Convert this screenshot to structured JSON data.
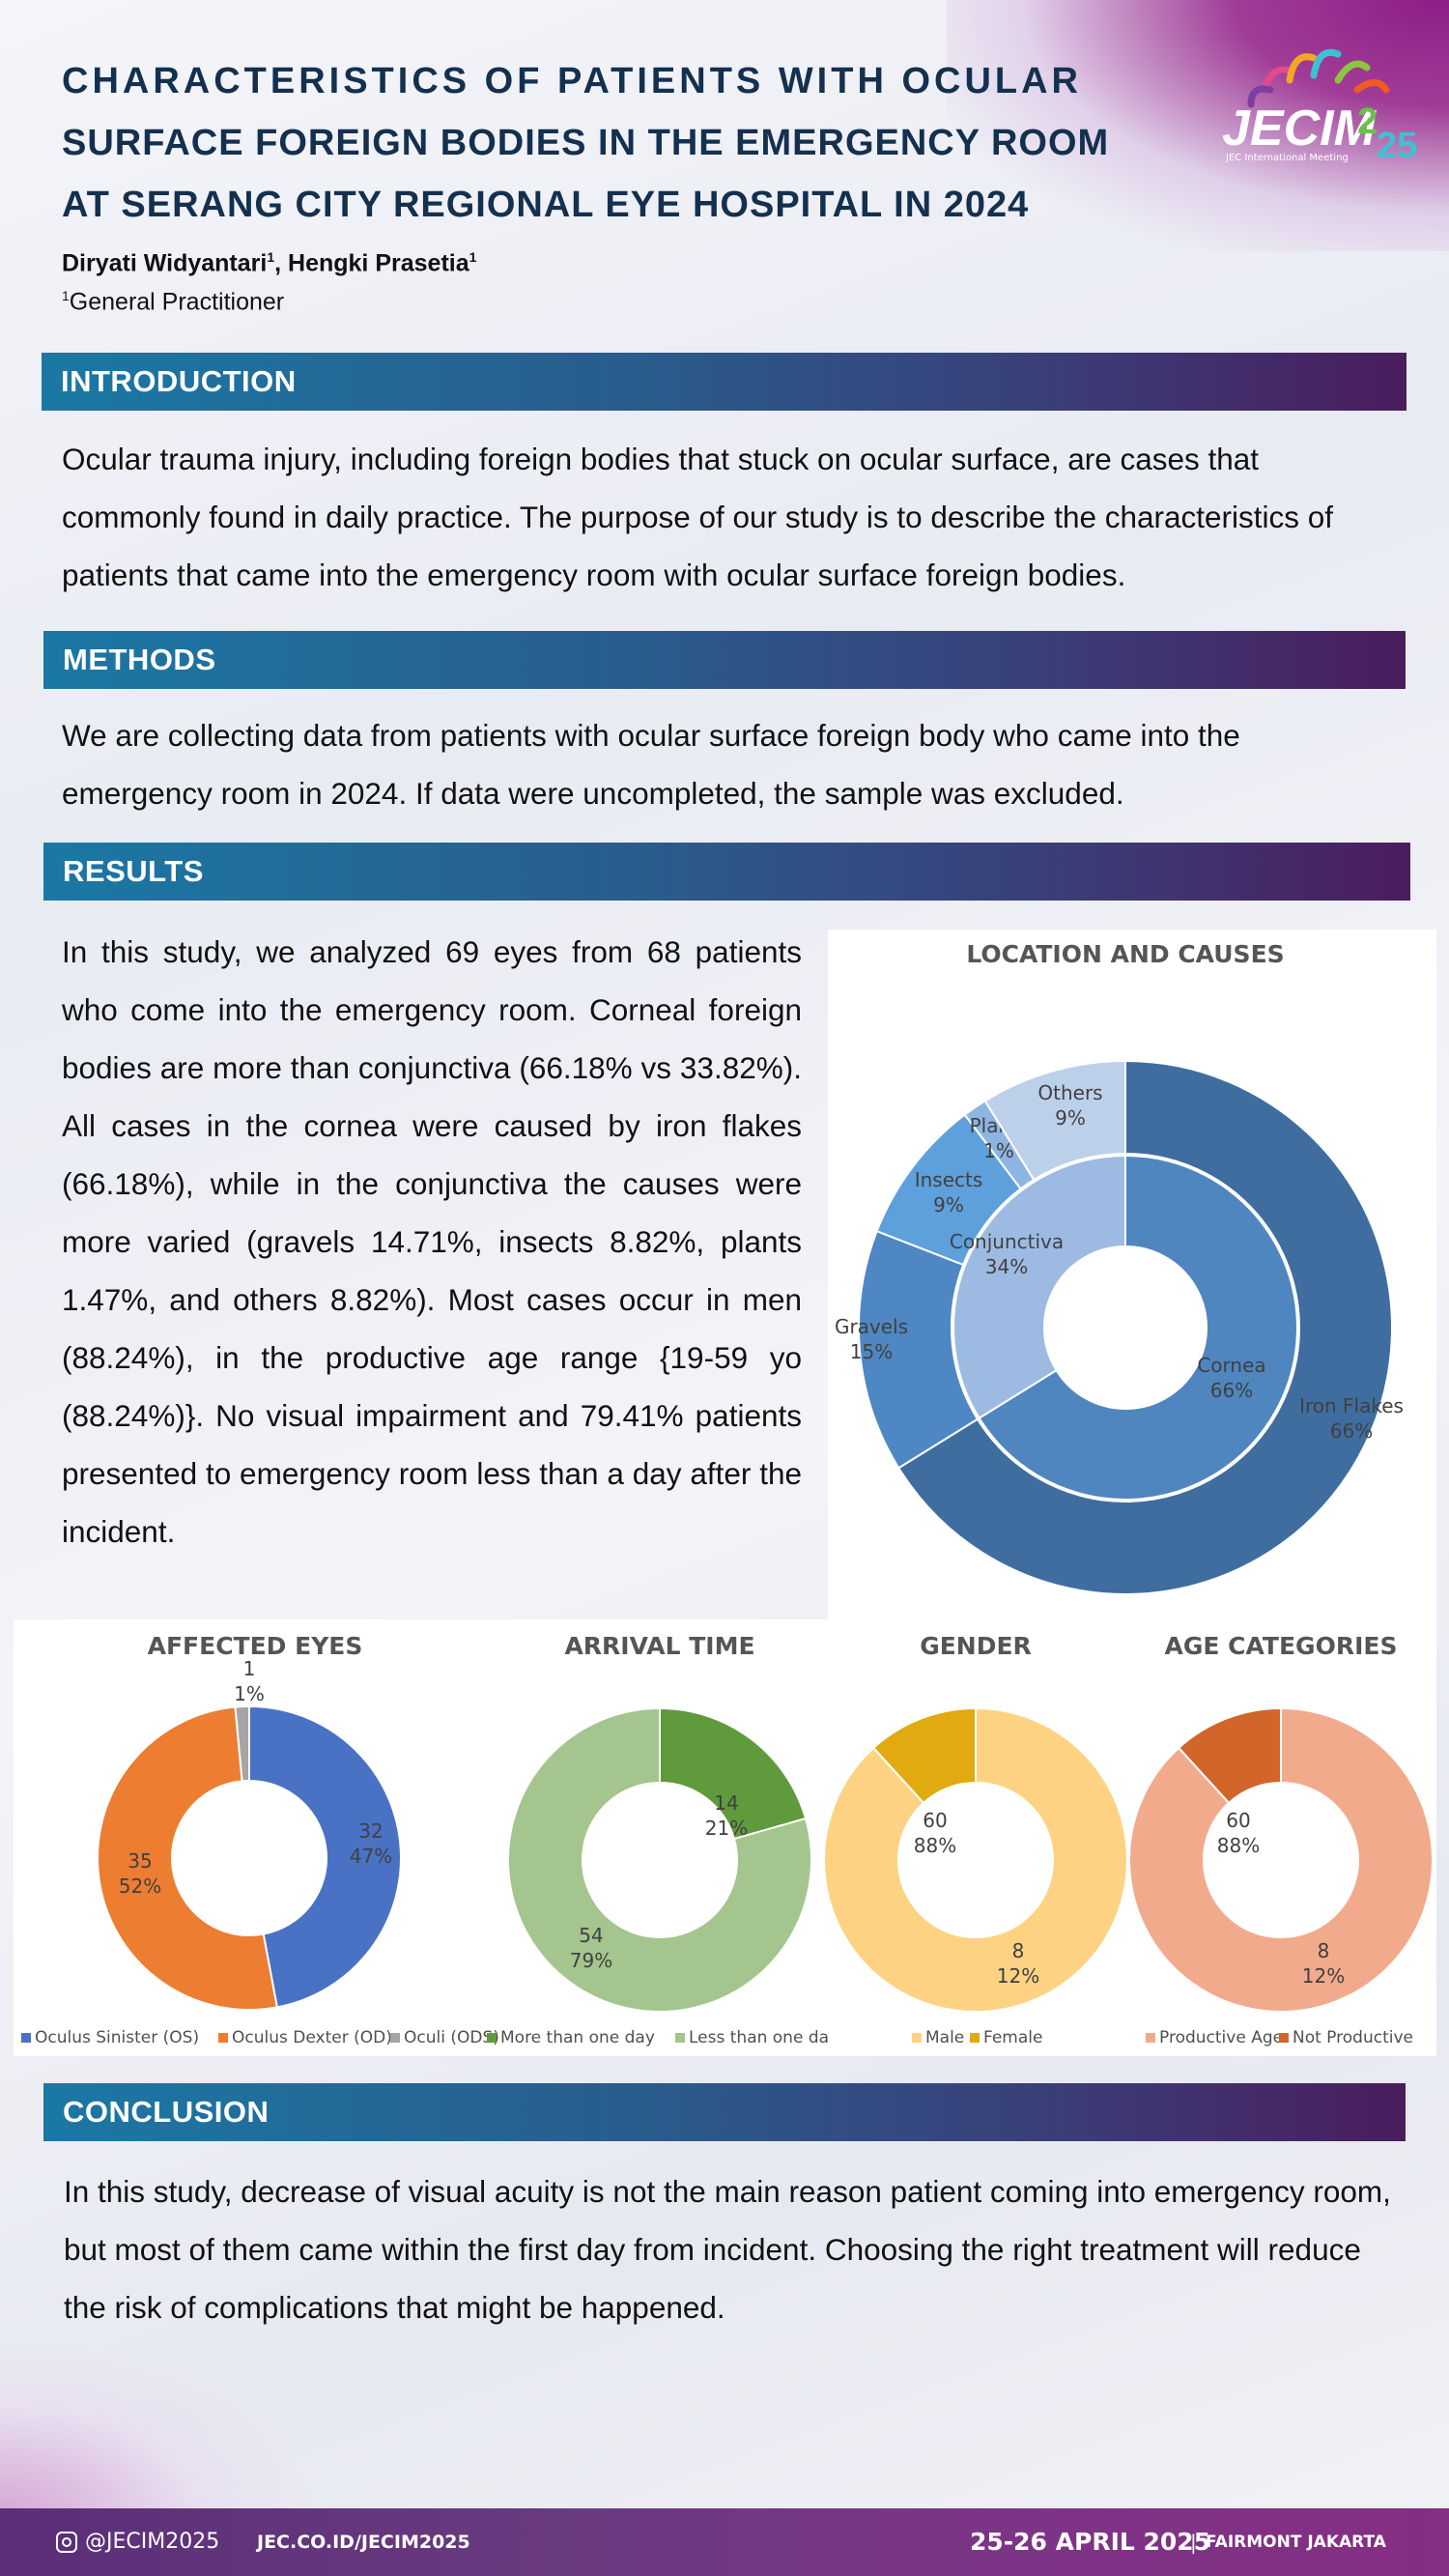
{
  "header": {
    "title_lines": [
      "CHARACTERISTICS OF PATIENTS WITH OCULAR",
      "SURFACE FOREIGN BODIES IN THE EMERGENCY ROOM",
      "AT SERANG CITY REGIONAL EYE HOSPITAL IN 2024"
    ],
    "authors_text": "Diryati Widyantari",
    "author_sup": "1",
    "authors_sep": ", Hengki Prasetia",
    "author2_sup": "1",
    "affil_sup": "1",
    "affiliation": "General Practitioner",
    "logo": {
      "text": "JECIM",
      "year_a": "2",
      "year_b": "25",
      "sub": "JEC International Meeting"
    }
  },
  "sections": {
    "introduction": {
      "heading": "INTRODUCTION",
      "text": "Ocular trauma injury, including foreign bodies that stuck on ocular surface, are cases that commonly found in daily practice. The purpose of our study is to describe the characteristics of patients that came into the emergency room with ocular surface foreign bodies."
    },
    "methods": {
      "heading": "METHODS",
      "text": "We are collecting data from patients with ocular surface foreign body who came into the emergency room in 2024. If data were uncompleted, the sample was excluded."
    },
    "results": {
      "heading": "RESULTS",
      "text": "In this study, we analyzed 69 eyes from 68 patients who come into the emergency room. Corneal foreign bodies are more than conjunctiva (66.18% vs 33.82%). All cases in the cornea were caused by iron flakes (66.18%), while in the conjunctiva the causes were more varied (gravels 14.71%, insects 8.82%, plants 1.47%, and others 8.82%). Most cases occur in men (88.24%), in the productive age range {19-59 yo (88.24%)}. No visual impairment and 79.41% patients presented to emergency room less than a day after the incident."
    },
    "conclusion": {
      "heading": "CONCLUSION",
      "text": "In this study, decrease of visual acuity is not the main reason patient coming into emergency room, but most of them came within the first day from incident. Choosing the right treatment will reduce the risk of complications that might be happened."
    }
  },
  "chart_data": [
    {
      "type": "pie",
      "title": "LOCATION AND CAUSES",
      "inner_ring": [
        {
          "name": "Cornea",
          "label": "66%",
          "value": 66.18,
          "color": "#4f86c0"
        },
        {
          "name": "Conjunctiva",
          "label": "34%",
          "value": 33.82,
          "color": "#9dbbe2"
        }
      ],
      "outer_ring": [
        {
          "name": "Iron Flakes",
          "label": "66%",
          "value": 66.18,
          "color": "#3f6d9f"
        },
        {
          "name": "Gravels",
          "label": "15%",
          "value": 14.71,
          "color": "#4e87c3"
        },
        {
          "name": "Insects",
          "label": "9%",
          "value": 8.82,
          "color": "#5ea0dc"
        },
        {
          "name": "Plants",
          "label": "1%",
          "value": 1.47,
          "color": "#8eb5e2"
        },
        {
          "name": "Others",
          "label": "9%",
          "value": 8.82,
          "color": "#bcd0ea"
        }
      ]
    },
    {
      "type": "pie",
      "title": "AFFECTED EYES",
      "slices": [
        {
          "name": "Oculus Sinister (OS)",
          "count": "32",
          "label": "47%",
          "value": 32,
          "color": "#4a72c4"
        },
        {
          "name": "Oculus Dexter (OD)",
          "count": "35",
          "label": "52%",
          "value": 35,
          "color": "#ed7d31"
        },
        {
          "name": "Oculi (ODS)",
          "count": "1",
          "label": "1%",
          "value": 1,
          "color": "#a5a5a5"
        }
      ]
    },
    {
      "type": "pie",
      "title": "ARRIVAL TIME",
      "slices": [
        {
          "name": "More than one day",
          "count": "14",
          "label": "21%",
          "value": 14,
          "color": "#5f9a3c"
        },
        {
          "name": "Less than one da",
          "count": "54",
          "label": "79%",
          "value": 54,
          "color": "#a4c58d"
        }
      ]
    },
    {
      "type": "pie",
      "title": "GENDER",
      "slices": [
        {
          "name": "Male",
          "count": "60",
          "label": "88%",
          "value": 60,
          "color": "#fdd383"
        },
        {
          "name": "Female",
          "count": "8",
          "label": "12%",
          "value": 8,
          "color": "#e0aa10"
        }
      ]
    },
    {
      "type": "pie",
      "title": "AGE CATEGORIES",
      "slices": [
        {
          "name": "Productive Age",
          "count": "60",
          "label": "88%",
          "value": 60,
          "color": "#f2aa8c"
        },
        {
          "name": "Not Productive",
          "count": "8",
          "label": "12%",
          "value": 8,
          "color": "#d2652a"
        }
      ]
    }
  ],
  "footer": {
    "social": "@JECIM2025",
    "url": "JEC.CO.ID/JECIM2025",
    "date": "25-26 APRIL 2025",
    "sep": "|",
    "venue": "FAIRMONT JAKARTA"
  }
}
